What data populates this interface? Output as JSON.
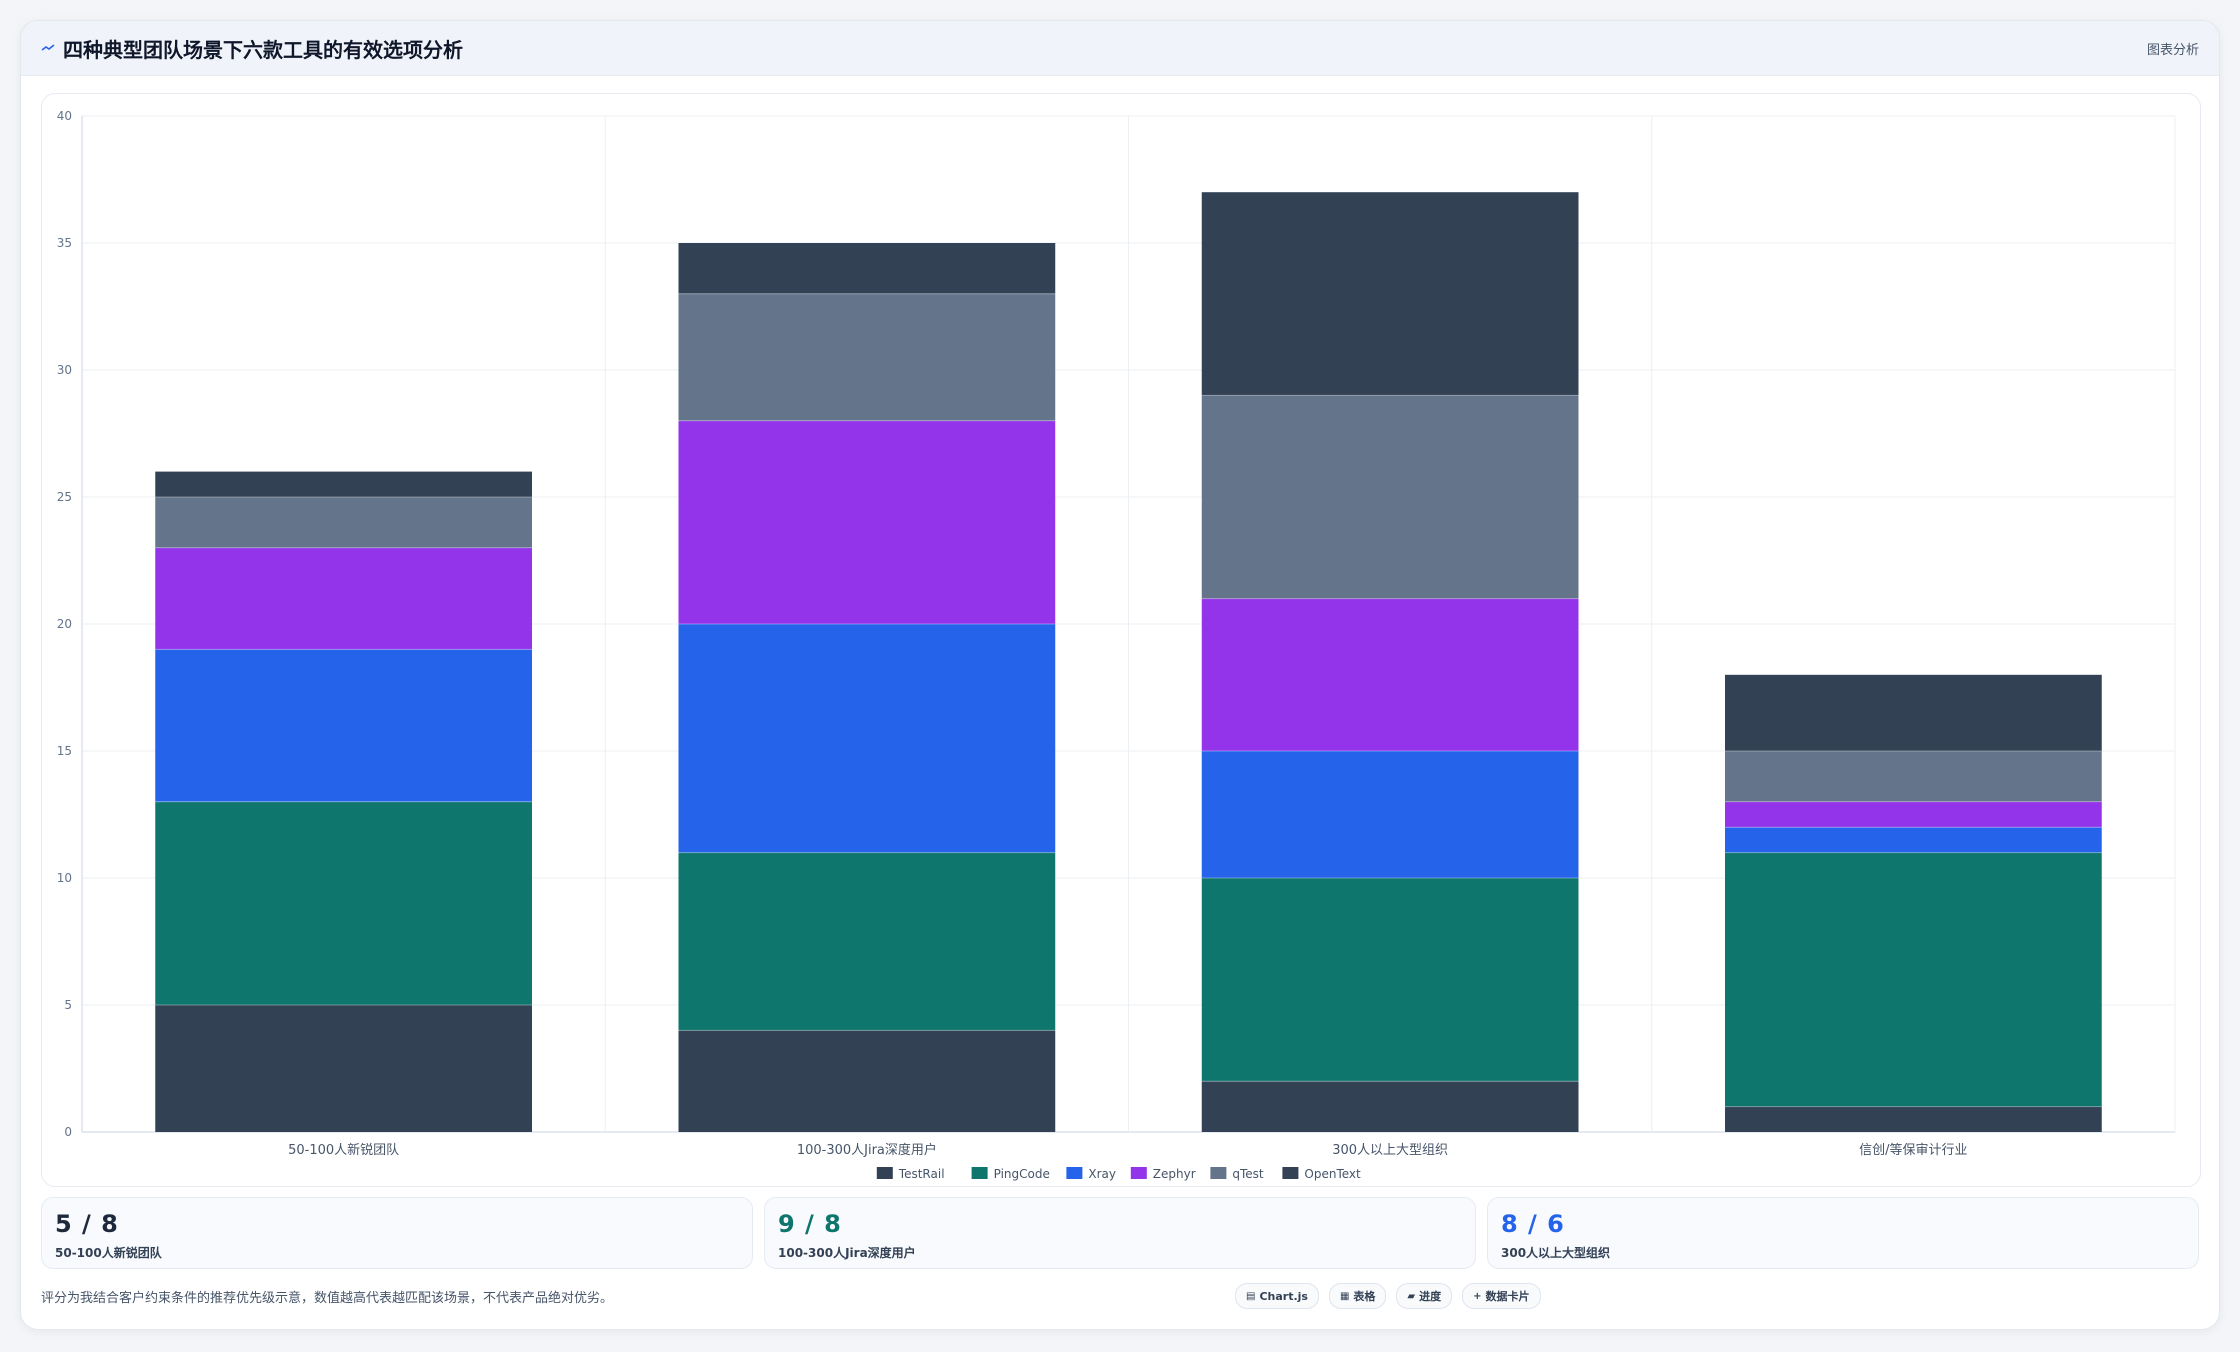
{
  "header": {
    "title": "四种典型团队场景下六款工具的有效选项分析",
    "right_tag": "图表分析"
  },
  "colors": {
    "TestRail": "#334155",
    "PingCode": "#0f766e",
    "Xray": "#2563eb",
    "Zephyr": "#9333ea",
    "qTest": "#64748b",
    "OpenText": "#334155"
  },
  "chart_data": {
    "type": "bar",
    "stacked": true,
    "categories": [
      "50-100人新锐团队",
      "100-300人Jira深度用户",
      "300人以上大型组织",
      "信创/等保审计行业"
    ],
    "series": [
      {
        "name": "TestRail",
        "values": [
          5,
          4,
          2,
          1
        ]
      },
      {
        "name": "PingCode",
        "values": [
          8,
          7,
          8,
          10
        ]
      },
      {
        "name": "Xray",
        "values": [
          6,
          9,
          5,
          1
        ]
      },
      {
        "name": "Zephyr",
        "values": [
          4,
          8,
          6,
          1
        ]
      },
      {
        "name": "qTest",
        "values": [
          2,
          5,
          8,
          2
        ]
      },
      {
        "name": "OpenText",
        "values": [
          1,
          2,
          8,
          3
        ]
      }
    ],
    "ylim": [
      0,
      40
    ],
    "yticks": [
      0,
      5,
      10,
      15,
      20,
      25,
      30,
      35,
      40
    ],
    "grid": true,
    "legend_position": "bottom"
  },
  "stats": [
    {
      "value": "5 / 8",
      "label": "50-100人新锐团队",
      "color": "#1e293b"
    },
    {
      "value": "9 / 8",
      "label": "100-300人Jira深度用户",
      "color": "#0f766e"
    },
    {
      "value": "8 / 6",
      "label": "300人以上大型组织",
      "color": "#2563eb"
    }
  ],
  "footer": {
    "note": "评分为我结合客户约束条件的推荐优先级示意，数值越高代表越匹配该场景，不代表产品绝对优劣。",
    "chips": [
      {
        "icon": "chart-icon",
        "glyph": "▤",
        "label": "Chart.js"
      },
      {
        "icon": "table-icon",
        "glyph": "▦",
        "label": "表格"
      },
      {
        "icon": "progress-icon",
        "glyph": "▰",
        "label": "进度"
      },
      {
        "icon": "card-icon",
        "glyph": "+",
        "label": "数据卡片"
      }
    ]
  }
}
